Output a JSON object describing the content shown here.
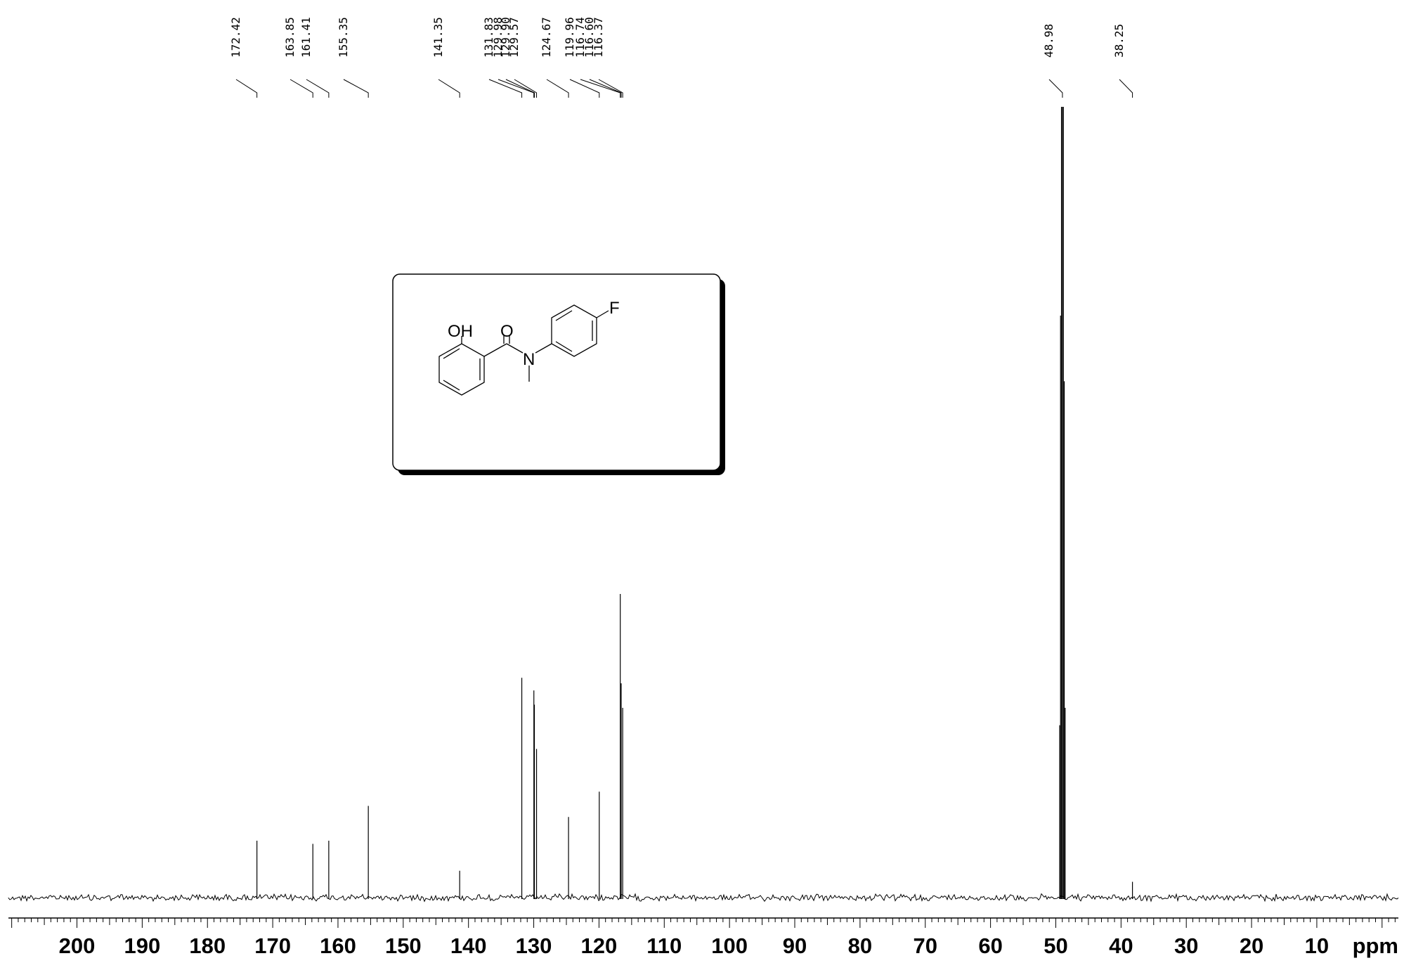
{
  "chart_data": {
    "type": "nmr-spectrum",
    "x_axis": {
      "reversed": true,
      "range_ppm": [
        210.5,
        -2.5
      ],
      "major_ticks": [
        200,
        190,
        180,
        170,
        160,
        150,
        140,
        130,
        120,
        110,
        100,
        90,
        80,
        70,
        60,
        50,
        40,
        30,
        20,
        10
      ],
      "unit_label": "ppm"
    },
    "peak_labels": [
      "172.42",
      "163.85",
      "161.41",
      "155.35",
      "141.35",
      "131.83",
      "129.98",
      "129.90",
      "129.57",
      "124.67",
      "119.96",
      "116.74",
      "116.60",
      "116.37",
      "48.98",
      "38.25"
    ],
    "peaks": [
      {
        "ppm": 172.42,
        "intensity": 0.072
      },
      {
        "ppm": 163.85,
        "intensity": 0.068
      },
      {
        "ppm": 161.41,
        "intensity": 0.072
      },
      {
        "ppm": 155.35,
        "intensity": 0.116
      },
      {
        "ppm": 141.35,
        "intensity": 0.034
      },
      {
        "ppm": 131.83,
        "intensity": 0.278
      },
      {
        "ppm": 129.98,
        "intensity": 0.262
      },
      {
        "ppm": 129.9,
        "intensity": 0.244
      },
      {
        "ppm": 129.57,
        "intensity": 0.188
      },
      {
        "ppm": 124.67,
        "intensity": 0.102
      },
      {
        "ppm": 119.96,
        "intensity": 0.134
      },
      {
        "ppm": 116.74,
        "intensity": 0.384
      },
      {
        "ppm": 116.6,
        "intensity": 0.271
      },
      {
        "ppm": 116.37,
        "intensity": 0.24
      },
      {
        "ppm": 49.4,
        "intensity": 0.218
      },
      {
        "ppm": 49.27,
        "intensity": 0.736
      },
      {
        "ppm": 49.13,
        "intensity": 1.0
      },
      {
        "ppm": 48.98,
        "intensity": 1.0
      },
      {
        "ppm": 48.84,
        "intensity": 1.0
      },
      {
        "ppm": 48.7,
        "intensity": 0.653
      },
      {
        "ppm": 48.56,
        "intensity": 0.24
      },
      {
        "ppm": 38.25,
        "intensity": 0.02
      }
    ]
  },
  "structure": {
    "atom_labels": {
      "oh": "OH",
      "o": "O",
      "n": "N",
      "f": "F"
    }
  }
}
